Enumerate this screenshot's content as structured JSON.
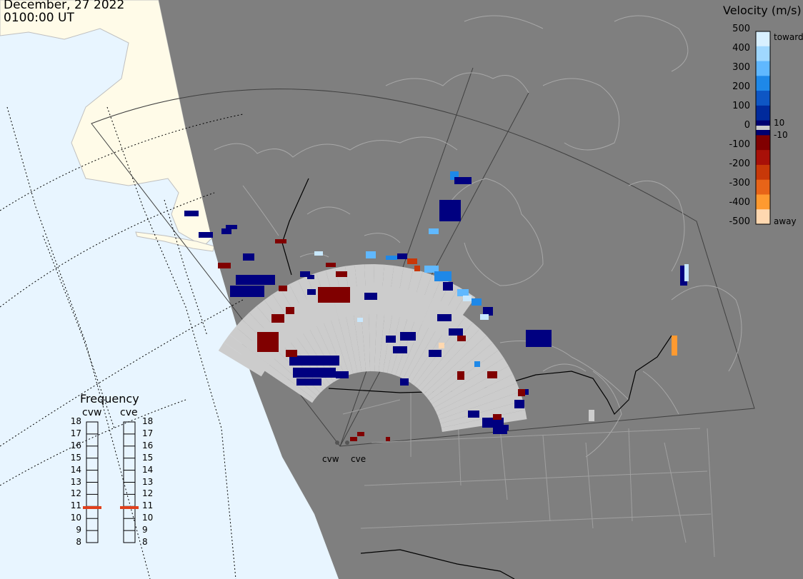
{
  "header": {
    "date": "December, 27 2022",
    "time": "0100:00 UT"
  },
  "colors": {
    "ocean": "#e8f5ff",
    "land_day": "#fffbe8",
    "night_shade": "#7f7f7f",
    "coastline": "#a8a8a8",
    "border": "#000000",
    "ground_scatter": "#cccccc",
    "accent_frequency": "#e0401c"
  },
  "velocity_scale": {
    "title": "Velocity (m/s)",
    "ticks": [
      "500",
      "400",
      "300",
      "200",
      "100",
      "0",
      "-100",
      "-200",
      "-300",
      "-400",
      "-500"
    ],
    "small_ticks": [
      "10",
      "-10"
    ],
    "toward_label": "toward",
    "away_label": "away",
    "colors": [
      "#d8f0ff",
      "#a0d8ff",
      "#60b8ff",
      "#1e88e8",
      "#0e56c4",
      "#002a9c",
      "#000070",
      "#800000",
      "#a81008",
      "#c83808",
      "#e86418",
      "#ff9a30",
      "#ffd8b0"
    ]
  },
  "frequency": {
    "title": "Frequency",
    "radars": [
      "cvw",
      "cve"
    ],
    "ticks": [
      "18",
      "17",
      "16",
      "15",
      "14",
      "13",
      "12",
      "11",
      "10",
      "9",
      "8"
    ],
    "current_mhz": [
      10.9,
      10.9
    ]
  },
  "sites": {
    "cvw_label": "cvw",
    "cve_label": "cve"
  }
}
